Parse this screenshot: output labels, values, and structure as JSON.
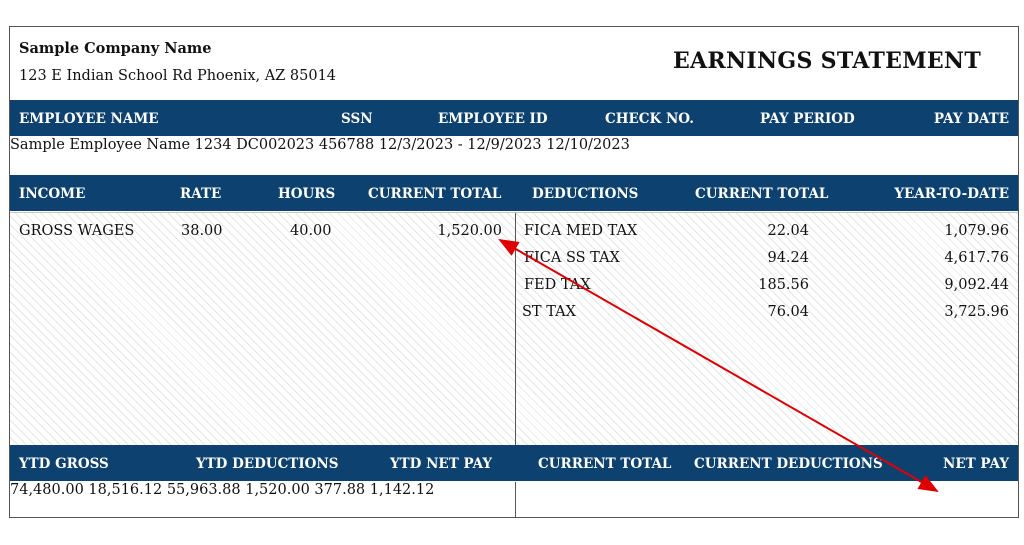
{
  "company": {
    "name": "Sample Company Name",
    "address": "123 E Indian School Rd Phoenix, AZ 85014"
  },
  "title": "EARNINGS STATEMENT",
  "employee_header": {
    "name": "EMPLOYEE NAME",
    "ssn": "SSN",
    "employee_id": "EMPLOYEE ID",
    "check_no": "CHECK NO.",
    "pay_period": "PAY PERIOD",
    "pay_date": "PAY DATE"
  },
  "employee": {
    "name": "Sample Employee Name",
    "ssn": "1234",
    "employee_id": "DC002023",
    "check_no": "456788",
    "pay_period": "12/3/2023 - 12/9/2023",
    "pay_date": "12/10/2023"
  },
  "income_header": {
    "income": "INCOME",
    "rate": "RATE",
    "hours": "HOURS",
    "current_total": "CURRENT TOTAL"
  },
  "deductions_header": {
    "deductions": "DEDUCTIONS",
    "current_total": "CURRENT TOTAL",
    "ytd": "YEAR-TO-DATE"
  },
  "income": [
    {
      "description": "GROSS WAGES",
      "rate": "38.00",
      "hours": "40.00",
      "current_total": "1,520.00"
    }
  ],
  "deductions": [
    {
      "description": "FICA MED TAX",
      "current_total": "22.04",
      "ytd": "1,079.96"
    },
    {
      "description": "FICA SS TAX",
      "current_total": "94.24",
      "ytd": "4,617.76"
    },
    {
      "description": "FED TAX",
      "current_total": "185.56",
      "ytd": "9,092.44"
    },
    {
      "description": "ST TAX",
      "current_total": "76.04",
      "ytd": "3,725.96"
    }
  ],
  "summary_header": {
    "ytd_gross": "YTD GROSS",
    "ytd_deductions": "YTD DEDUCTIONS",
    "ytd_net_pay": "YTD NET PAY",
    "current_total": "CURRENT TOTAL",
    "current_deductions": "CURRENT DEDUCTIONS",
    "net_pay": "NET PAY"
  },
  "summary": {
    "ytd_gross": "74,480.00",
    "ytd_deductions": "18,516.12",
    "ytd_net_pay": "55,963.88",
    "current_total": "1,520.00",
    "current_deductions": "377.88",
    "net_pay": "1,142.12"
  },
  "colors": {
    "header_bar": "#0d4270",
    "annotation_arrow": "#e00000"
  }
}
